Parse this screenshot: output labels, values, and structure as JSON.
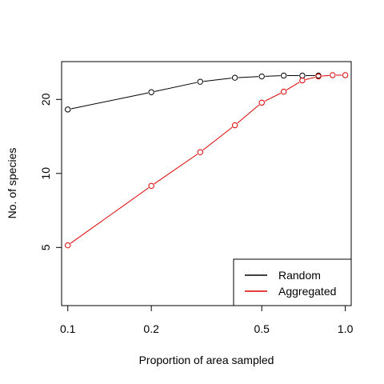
{
  "chart_data": {
    "type": "line",
    "xlabel": "Proportion of area sampled",
    "ylabel": "No. of species",
    "x_scale": "log",
    "y_scale": "log",
    "xlim": [
      0.095,
      1.05
    ],
    "ylim": [
      2.9,
      28.5
    ],
    "x_ticks": [
      0.1,
      0.2,
      0.5,
      1.0
    ],
    "x_tick_labels": [
      "0.1",
      "0.2",
      "0.5",
      "1.0"
    ],
    "y_ticks": [
      5,
      10,
      20
    ],
    "y_tick_labels": [
      "5",
      "10",
      "20"
    ],
    "grid": false,
    "legend_position": "bottom-right",
    "series": [
      {
        "name": "Random",
        "color": "#000000",
        "x": [
          0.1,
          0.2,
          0.3,
          0.4,
          0.5,
          0.6,
          0.7,
          0.8
        ],
        "y": [
          18.2,
          21.4,
          23.6,
          24.5,
          24.8,
          25.0,
          25.0,
          25.0
        ]
      },
      {
        "name": "Aggregated",
        "color": "#dd0000",
        "x": [
          0.1,
          0.2,
          0.3,
          0.4,
          0.5,
          0.6,
          0.7,
          0.8,
          0.9,
          1.0
        ],
        "y": [
          5.1,
          8.9,
          12.2,
          15.7,
          19.4,
          21.5,
          23.9,
          24.8,
          25.1,
          25.1
        ]
      }
    ]
  }
}
